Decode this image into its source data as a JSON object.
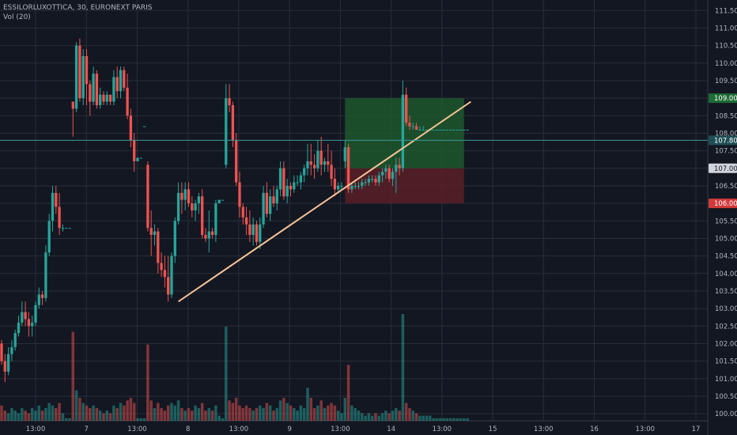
{
  "header": {
    "symbol_line": "ESSILORLUXOTTICA, 30, EURONEXT PARIS",
    "indicator_line": "Vol (20)"
  },
  "colors": {
    "background": "#131722",
    "grid": "#2a2e39",
    "up": "#26a69a",
    "down": "#ef5350",
    "trendline": "#f5c396",
    "profit_zone": "#1f5b2e",
    "stop_zone": "#5e1f27",
    "current_price_line": "#3a9a9a"
  },
  "chart_data": {
    "type": "candlestick",
    "yaxis_ticks": [
      "111.50",
      "111.00",
      "110.50",
      "110.00",
      "109.50",
      "109.00",
      "108.50",
      "108.00",
      "107.50",
      "107.00",
      "106.50",
      "106.00",
      "105.50",
      "105.00",
      "104.50",
      "104.00",
      "103.50",
      "103.00",
      "102.50",
      "102.00",
      "101.50",
      "101.00",
      "100.50",
      "100.00"
    ],
    "ylim": [
      99.8,
      111.8
    ],
    "xaxis_labels": [
      "13:00",
      "7",
      "13:00",
      "8",
      "13:00",
      "9",
      "13:00",
      "14",
      "13:00",
      "15",
      "13:00",
      "16",
      "13:00",
      "17"
    ],
    "price_tags": [
      {
        "value": 109.0,
        "label": "109.00",
        "style": "green"
      },
      {
        "value": 107.8,
        "label": "107.80",
        "style": "teal"
      },
      {
        "value": 107.0,
        "label": "107.00",
        "style": "light"
      },
      {
        "value": 106.0,
        "label": "106.00",
        "style": "red"
      }
    ],
    "trade_setup": {
      "entry": 107.0,
      "target": 109.0,
      "stop": 106.0,
      "from_bar": 101,
      "to_bar": 136
    },
    "trendline": {
      "from": {
        "bar": 52,
        "price": 103.2
      },
      "to": {
        "bar": 138,
        "price": 108.9
      }
    },
    "candles": [
      [
        102,
        102.1,
        101.4,
        101.5,
        6
      ],
      [
        101.5,
        101.7,
        100.9,
        101.2,
        4
      ],
      [
        101.2,
        101.9,
        101.1,
        101.7,
        3
      ],
      [
        101.7,
        102.1,
        101.5,
        101.9,
        5
      ],
      [
        101.9,
        102.4,
        101.8,
        102.3,
        4
      ],
      [
        102.3,
        102.8,
        102.2,
        102.6,
        3
      ],
      [
        102.6,
        103.2,
        102.5,
        102.9,
        5
      ],
      [
        102.9,
        103.2,
        102.5,
        102.7,
        4
      ],
      [
        102.7,
        102.9,
        102.2,
        102.5,
        3
      ],
      [
        102.5,
        102.8,
        102.2,
        102.6,
        5
      ],
      [
        102.6,
        103.2,
        102.5,
        103.1,
        4
      ],
      [
        103.1,
        103.6,
        103,
        103.4,
        6
      ],
      [
        103.4,
        103.5,
        103.1,
        103.3,
        4
      ],
      [
        103.3,
        104.8,
        103.2,
        104.6,
        5
      ],
      [
        104.6,
        105.7,
        104.5,
        105.5,
        7
      ],
      [
        105.5,
        106.5,
        105.2,
        106.3,
        6
      ],
      [
        106.3,
        106.5,
        105.7,
        105.9,
        5
      ],
      [
        105.9,
        106.3,
        105.1,
        105.3,
        7
      ],
      [
        105.3,
        105.4,
        105.2,
        105.3,
        3
      ],
      [
        105.3,
        105.3,
        105.3,
        105.3,
        1
      ],
      [
        105.3,
        105.3,
        105.3,
        105.3,
        1
      ],
      [
        108.9,
        108.9,
        107.9,
        108.7,
        35
      ],
      [
        108.7,
        110.6,
        108.6,
        110.5,
        12
      ],
      [
        110.5,
        110.7,
        108.9,
        109.0,
        9
      ],
      [
        109.0,
        110.4,
        108.8,
        110.2,
        7
      ],
      [
        110.2,
        110.4,
        108.8,
        109.4,
        6
      ],
      [
        109.4,
        109.5,
        108.5,
        108.9,
        5
      ],
      [
        108.9,
        109.9,
        108.8,
        109.7,
        6
      ],
      [
        109.7,
        109.8,
        108.7,
        108.8,
        5
      ],
      [
        108.8,
        109.3,
        108.7,
        109.1,
        4
      ],
      [
        109.1,
        109.2,
        108.8,
        108.9,
        3
      ],
      [
        108.9,
        109.2,
        108.8,
        109.1,
        4
      ],
      [
        109.1,
        109.1,
        108.8,
        108.9,
        3
      ],
      [
        108.9,
        109.8,
        108.8,
        109.6,
        6
      ],
      [
        109.6,
        109.9,
        109.0,
        109.2,
        5
      ],
      [
        109.2,
        109.9,
        109.0,
        109.8,
        7
      ],
      [
        109.8,
        109.9,
        109.2,
        109.3,
        6
      ],
      [
        109.3,
        109.7,
        108.4,
        108.5,
        8
      ],
      [
        108.5,
        108.7,
        107.6,
        107.8,
        9
      ],
      [
        107.8,
        108.0,
        106.9,
        107.2,
        7
      ],
      [
        107.2,
        107.3,
        107.2,
        107.3,
        1
      ],
      [
        107.3,
        107.3,
        107.3,
        107.3,
        1
      ],
      [
        108.2,
        108.2,
        108.2,
        108.2,
        1
      ],
      [
        107.1,
        107.2,
        105.2,
        105.3,
        30
      ],
      [
        105.3,
        105.8,
        104.5,
        105.1,
        8
      ],
      [
        105.1,
        105.4,
        104.8,
        105.2,
        5
      ],
      [
        105.2,
        105.3,
        104.0,
        104.3,
        7
      ],
      [
        104.3,
        104.6,
        103.9,
        104.1,
        5
      ],
      [
        104.1,
        104.5,
        103.6,
        103.9,
        4
      ],
      [
        103.9,
        104.5,
        103.2,
        103.4,
        6
      ],
      [
        103.4,
        104.6,
        103.3,
        104.5,
        7
      ],
      [
        104.5,
        105.6,
        104.3,
        105.5,
        6
      ],
      [
        105.5,
        106.6,
        105.4,
        106.3,
        8
      ],
      [
        106.3,
        106.6,
        105.7,
        106.1,
        5
      ],
      [
        106.1,
        106.6,
        105.8,
        106.4,
        4
      ],
      [
        106.4,
        106.6,
        105.9,
        106.0,
        5
      ],
      [
        106.0,
        106.2,
        105.6,
        105.8,
        4
      ],
      [
        105.8,
        106.1,
        105.5,
        106.0,
        6
      ],
      [
        106.0,
        106.3,
        105.7,
        106.2,
        5
      ],
      [
        106.2,
        106.4,
        105.0,
        105.1,
        7
      ],
      [
        105.1,
        105.3,
        104.9,
        105.0,
        4
      ],
      [
        105.0,
        105.8,
        104.6,
        105.2,
        5
      ],
      [
        105.2,
        105.3,
        105.0,
        105.1,
        4
      ],
      [
        105.1,
        106.1,
        104.9,
        106.0,
        6
      ],
      [
        106.0,
        106.1,
        106.0,
        106.1,
        2
      ],
      [
        106.1,
        106.1,
        106.1,
        106.1,
        1
      ],
      [
        107.1,
        109.4,
        107.0,
        109.0,
        37
      ],
      [
        109.0,
        109.4,
        108.6,
        108.8,
        8
      ],
      [
        108.8,
        108.9,
        107.6,
        107.8,
        7
      ],
      [
        107.8,
        108.0,
        106.5,
        106.6,
        9
      ],
      [
        106.6,
        106.9,
        105.6,
        105.9,
        6
      ],
      [
        105.9,
        106.0,
        105.4,
        105.6,
        5
      ],
      [
        105.6,
        105.9,
        105.1,
        105.4,
        6
      ],
      [
        105.4,
        105.8,
        104.9,
        105.1,
        5
      ],
      [
        105.1,
        105.6,
        104.8,
        105.4,
        4
      ],
      [
        105.4,
        105.5,
        104.8,
        104.9,
        5
      ],
      [
        104.9,
        105.6,
        104.7,
        105.4,
        6
      ],
      [
        105.4,
        106.5,
        105.3,
        106.3,
        5
      ],
      [
        106.3,
        106.6,
        105.6,
        105.7,
        7
      ],
      [
        105.7,
        106.4,
        105.5,
        106.2,
        6
      ],
      [
        106.2,
        106.5,
        105.9,
        106.0,
        4
      ],
      [
        106.0,
        106.5,
        105.8,
        106.4,
        5
      ],
      [
        106.4,
        107.2,
        106.2,
        107.0,
        8
      ],
      [
        107.0,
        107.2,
        106.1,
        106.2,
        9
      ],
      [
        106.2,
        106.7,
        106.0,
        106.5,
        7
      ],
      [
        106.5,
        106.6,
        106.2,
        106.4,
        6
      ],
      [
        106.4,
        106.8,
        106.3,
        106.6,
        5
      ],
      [
        106.6,
        106.8,
        106.5,
        106.6,
        4
      ],
      [
        106.6,
        106.9,
        106.4,
        106.8,
        6
      ],
      [
        106.8,
        107.1,
        106.6,
        107.0,
        5
      ],
      [
        107.0,
        107.7,
        106.8,
        107.2,
        13
      ],
      [
        107.2,
        107.7,
        106.8,
        107.1,
        9
      ],
      [
        107.1,
        107.4,
        106.7,
        107.0,
        5
      ],
      [
        107.0,
        107.8,
        106.9,
        107.5,
        6
      ],
      [
        107.5,
        107.9,
        106.8,
        107.1,
        8
      ],
      [
        107.1,
        107.3,
        106.9,
        107.2,
        5
      ],
      [
        107.2,
        107.7,
        106.9,
        107.1,
        6
      ],
      [
        107.1,
        107.5,
        106.5,
        106.7,
        7
      ],
      [
        106.7,
        107.0,
        106.2,
        106.4,
        6
      ],
      [
        106.4,
        106.6,
        106.3,
        106.5,
        4
      ],
      [
        106.5,
        106.6,
        106.4,
        106.5,
        3
      ],
      [
        107.2,
        107.8,
        107.0,
        107.6,
        9
      ],
      [
        107.6,
        107.7,
        106.3,
        106.4,
        22
      ],
      [
        106.4,
        106.6,
        106.3,
        106.5,
        6
      ],
      [
        106.5,
        106.6,
        106.4,
        106.5,
        5
      ],
      [
        106.5,
        106.6,
        106.4,
        106.5,
        4
      ],
      [
        106.5,
        106.7,
        106.4,
        106.6,
        3
      ],
      [
        106.6,
        106.7,
        106.5,
        106.6,
        2
      ],
      [
        106.6,
        106.8,
        106.5,
        106.7,
        3
      ],
      [
        106.7,
        106.8,
        106.6,
        106.7,
        2
      ],
      [
        106.7,
        106.8,
        106.5,
        106.6,
        3
      ],
      [
        106.6,
        106.9,
        106.5,
        106.8,
        2
      ],
      [
        106.8,
        107.0,
        106.6,
        106.9,
        3
      ],
      [
        106.9,
        107.1,
        106.7,
        107.0,
        4
      ],
      [
        107.0,
        107.1,
        106.6,
        106.7,
        3
      ],
      [
        106.7,
        107.0,
        106.5,
        106.9,
        4
      ],
      [
        106.9,
        107.3,
        106.3,
        107.1,
        5
      ],
      [
        107.1,
        107.3,
        106.8,
        107.0,
        4
      ],
      [
        107.0,
        109.5,
        106.9,
        109.1,
        42
      ],
      [
        109.1,
        109.3,
        108.2,
        108.3,
        7
      ],
      [
        108.3,
        108.5,
        108.1,
        108.2,
        5
      ],
      [
        108.2,
        108.3,
        108.1,
        108.2,
        4
      ],
      [
        108.2,
        108.3,
        108.1,
        108.1,
        3
      ],
      [
        108.1,
        108.2,
        108.1,
        108.1,
        2
      ],
      [
        108.1,
        108.2,
        108.1,
        108.1,
        2
      ],
      [
        108.1,
        108.1,
        108.1,
        108.1,
        2
      ],
      [
        108.1,
        108.1,
        108.1,
        108.1,
        2
      ],
      [
        108.1,
        108.1,
        108.1,
        108.1,
        1
      ],
      [
        108.1,
        108.1,
        108.1,
        108.1,
        1
      ],
      [
        108.1,
        108.1,
        108.1,
        108.1,
        1
      ],
      [
        108.1,
        108.1,
        108.1,
        108.1,
        1
      ],
      [
        108.1,
        108.1,
        108.1,
        108.1,
        1
      ],
      [
        108.1,
        108.1,
        108.1,
        108.1,
        1
      ],
      [
        108.1,
        108.1,
        108.1,
        108.1,
        1
      ],
      [
        108.1,
        108.1,
        108.1,
        108.1,
        1
      ],
      [
        108.1,
        108.1,
        108.1,
        108.1,
        1
      ],
      [
        108.1,
        108.1,
        108.1,
        108.1,
        1
      ],
      [
        108.1,
        108.1,
        108.1,
        108.1,
        1
      ]
    ]
  }
}
